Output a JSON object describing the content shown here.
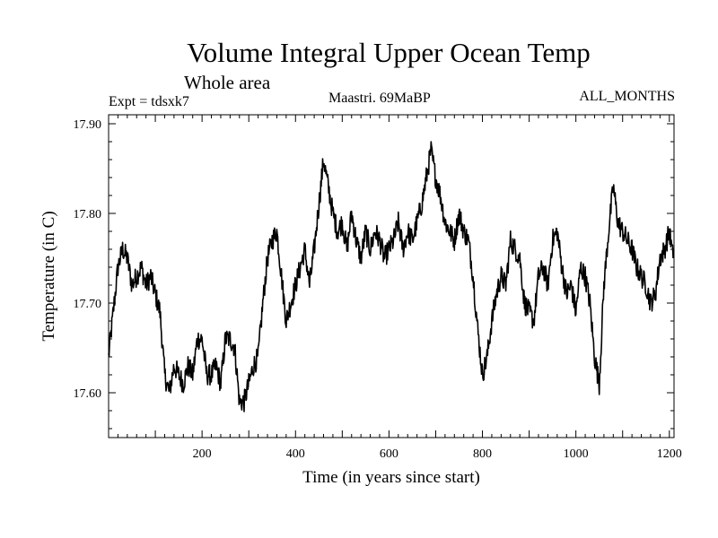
{
  "chart_data": {
    "type": "line",
    "title": "Volume Integral Upper Ocean Temp",
    "subtitle": "Whole area",
    "expt_label": "Expt = tdsxk7",
    "period_label": "Maastri.  69MaBP",
    "months_label": "ALL_MONTHS",
    "xlabel": "Time (in years since start)",
    "ylabel": "Temperature (in C)",
    "xlim": [
      0,
      1210
    ],
    "ylim": [
      17.55,
      17.91
    ],
    "x_tick_values": [
      200,
      400,
      600,
      800,
      1000,
      1200
    ],
    "x_tick_labels": [
      "200",
      "400",
      "600",
      "800",
      "1000",
      "1200"
    ],
    "y_tick_values": [
      17.6,
      17.7,
      17.8,
      17.9
    ],
    "y_tick_labels": [
      "17.60",
      "17.70",
      "17.80",
      "17.90"
    ],
    "series": [
      {
        "name": "Volume integral upper ocean temperature",
        "x": [
          0,
          10,
          20,
          30,
          40,
          50,
          60,
          70,
          80,
          90,
          100,
          110,
          120,
          130,
          140,
          150,
          160,
          170,
          180,
          190,
          200,
          210,
          220,
          230,
          240,
          250,
          260,
          270,
          280,
          290,
          300,
          310,
          320,
          330,
          340,
          350,
          360,
          370,
          380,
          390,
          400,
          410,
          420,
          430,
          440,
          450,
          460,
          470,
          480,
          490,
          500,
          510,
          520,
          530,
          540,
          550,
          560,
          570,
          580,
          590,
          600,
          610,
          620,
          630,
          640,
          650,
          660,
          670,
          680,
          690,
          700,
          710,
          720,
          730,
          740,
          750,
          760,
          770,
          780,
          790,
          800,
          810,
          820,
          830,
          840,
          850,
          860,
          870,
          880,
          890,
          900,
          910,
          920,
          930,
          940,
          950,
          960,
          970,
          980,
          990,
          1000,
          1010,
          1020,
          1030,
          1040,
          1050,
          1060,
          1070,
          1080,
          1090,
          1100,
          1110,
          1120,
          1130,
          1140,
          1150,
          1160,
          1170,
          1180,
          1190,
          1200,
          1208
        ],
        "y": [
          17.64,
          17.69,
          17.74,
          17.76,
          17.75,
          17.72,
          17.73,
          17.74,
          17.72,
          17.73,
          17.71,
          17.69,
          17.62,
          17.6,
          17.63,
          17.62,
          17.61,
          17.63,
          17.62,
          17.66,
          17.66,
          17.62,
          17.62,
          17.63,
          17.61,
          17.66,
          17.66,
          17.65,
          17.59,
          17.59,
          17.61,
          17.63,
          17.64,
          17.7,
          17.75,
          17.77,
          17.78,
          17.73,
          17.68,
          17.7,
          17.72,
          17.74,
          17.76,
          17.72,
          17.76,
          17.81,
          17.86,
          17.83,
          17.8,
          17.78,
          17.79,
          17.76,
          17.8,
          17.77,
          17.75,
          17.78,
          17.76,
          17.78,
          17.77,
          17.75,
          17.76,
          17.77,
          17.79,
          17.76,
          17.78,
          17.77,
          17.79,
          17.81,
          17.84,
          17.87,
          17.84,
          17.82,
          17.79,
          17.78,
          17.77,
          17.8,
          17.78,
          17.77,
          17.73,
          17.67,
          17.62,
          17.64,
          17.68,
          17.71,
          17.73,
          17.72,
          17.77,
          17.76,
          17.75,
          17.7,
          17.69,
          17.68,
          17.73,
          17.74,
          17.72,
          17.77,
          17.78,
          17.74,
          17.71,
          17.72,
          17.69,
          17.74,
          17.73,
          17.7,
          17.64,
          17.61,
          17.72,
          17.78,
          17.83,
          17.79,
          17.78,
          17.77,
          17.76,
          17.74,
          17.73,
          17.72,
          17.7,
          17.71,
          17.75,
          17.76,
          17.78,
          17.75
        ]
      }
    ]
  }
}
